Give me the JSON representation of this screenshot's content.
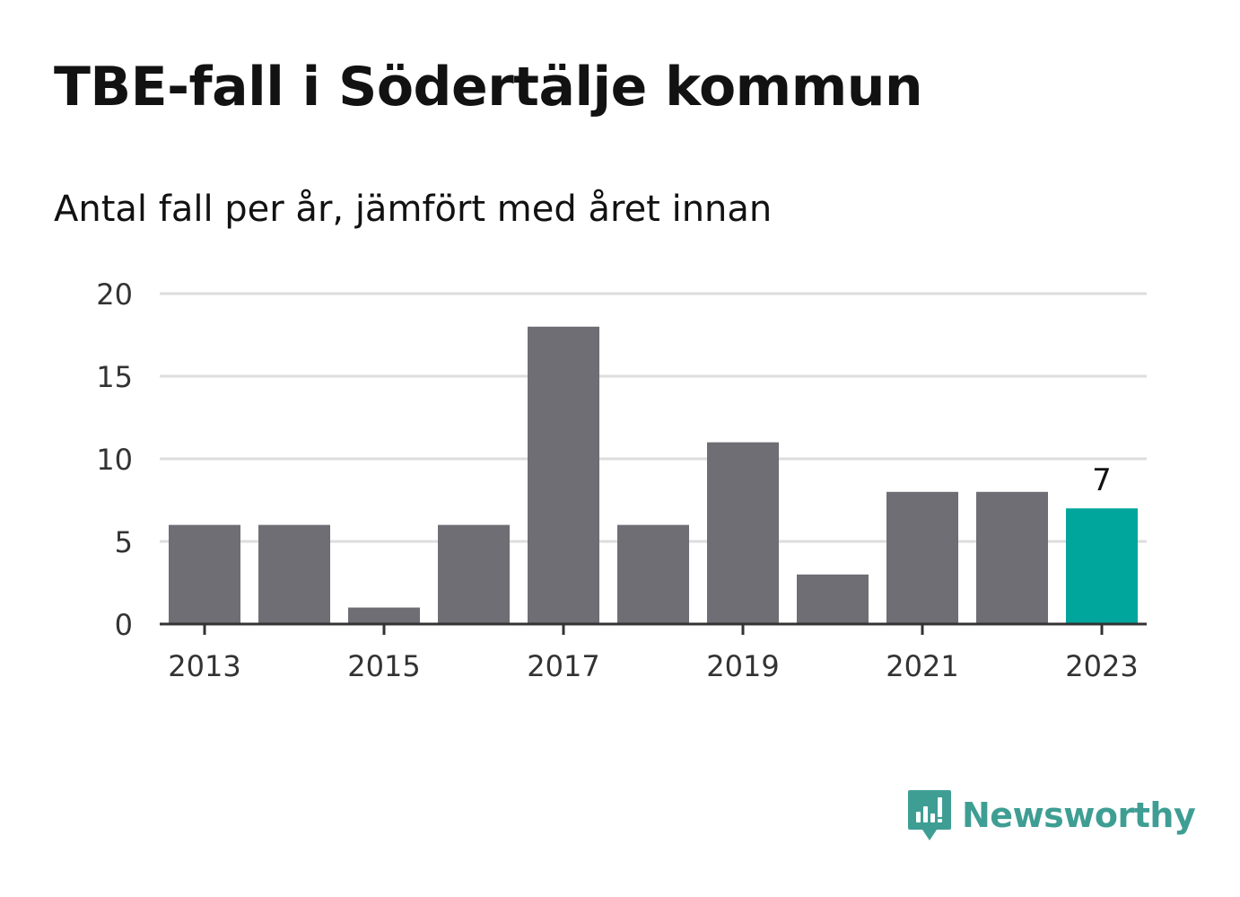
{
  "header": {
    "title": "TBE-fall i Södertälje kommun",
    "subtitle": "Antal fall per år, jämfört med året innan"
  },
  "brand": {
    "name": "Newsworthy",
    "color": "#3f9e94"
  },
  "colors": {
    "bar": "#6f6e74",
    "highlight": "#00a69c",
    "grid": "#dddddd",
    "axis": "#333333"
  },
  "chart_data": {
    "type": "bar",
    "categories": [
      "2013",
      "2014",
      "2015",
      "2016",
      "2017",
      "2018",
      "2019",
      "2020",
      "2021",
      "2022",
      "2023"
    ],
    "values": [
      6,
      6,
      1,
      6,
      18,
      6,
      11,
      3,
      8,
      8,
      7
    ],
    "highlight_index": 10,
    "highlight_label": "7",
    "x_tick_labels": [
      "2013",
      "2015",
      "2017",
      "2019",
      "2021",
      "2023"
    ],
    "y_ticks": [
      0,
      5,
      10,
      15,
      20
    ],
    "ylim": [
      0,
      20
    ],
    "grid": true
  }
}
